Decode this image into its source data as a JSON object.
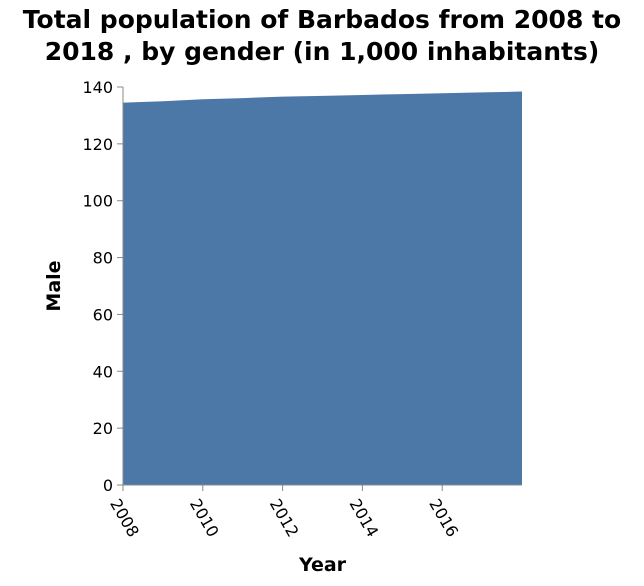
{
  "chart_data": {
    "type": "area",
    "title_line1": "Total population of Barbados from 2008 to",
    "title_line2": "2018 , by gender (in 1,000 inhabitants)",
    "xlabel": "Year",
    "ylabel": "Male",
    "x": [
      2008,
      2009,
      2010,
      2011,
      2012,
      2013,
      2014,
      2015,
      2016,
      2017,
      2018
    ],
    "series": [
      {
        "values": [
          134.5,
          135.0,
          135.7,
          136.1,
          136.6,
          136.9,
          137.2,
          137.5,
          137.8,
          138.1,
          138.4
        ]
      }
    ],
    "xticks": [
      2008,
      2010,
      2012,
      2014,
      2016
    ],
    "yticks": [
      0,
      20,
      40,
      60,
      80,
      100,
      120,
      140
    ],
    "xlim": [
      2008,
      2018
    ],
    "ylim": [
      0,
      140
    ],
    "grid": false,
    "fill_color": "#4c78a8"
  }
}
